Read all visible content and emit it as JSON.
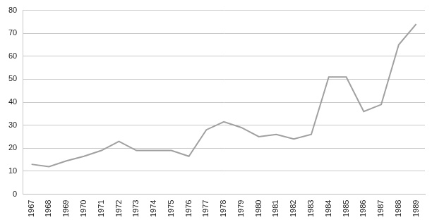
{
  "chart_data": {
    "type": "line",
    "categories": [
      "1967",
      "1968",
      "1969",
      "1970",
      "1971",
      "1972",
      "1973",
      "1974",
      "1975",
      "1976",
      "1977",
      "1978",
      "1979",
      "1980",
      "1981",
      "1982",
      "1983",
      "1984",
      "1985",
      "1986",
      "1987",
      "1988",
      "1989"
    ],
    "values": [
      13,
      12,
      14.5,
      16.5,
      19,
      23,
      19,
      19,
      19,
      16.5,
      28,
      31.5,
      29,
      25,
      26,
      24,
      26,
      51,
      51,
      36,
      39,
      65,
      74
    ],
    "color": "#a0a0a0",
    "ylim": [
      0,
      80
    ],
    "yticks": [
      0,
      10,
      20,
      30,
      40,
      50,
      60,
      70,
      80
    ],
    "grid": true
  }
}
